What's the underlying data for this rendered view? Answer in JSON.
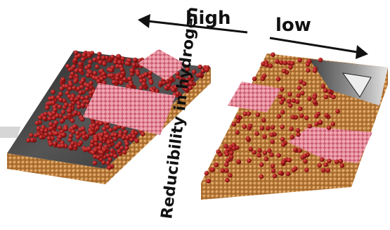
{
  "labels": {
    "high": "high",
    "low": "low",
    "axis_title": "Reducibility in hydrogen"
  },
  "colors": {
    "background": "#ffffff",
    "copper_atom": "#c98a45",
    "copper_edge": "#8a5620",
    "oxygen_atom": "#a01818",
    "oxide_island": "#e07a8a",
    "oxide_island_light": "#f2b3bf",
    "stm_image_dark": "#3a3a3a",
    "stm_image_light": "#d8d8d8",
    "arrow": "#111111",
    "text": "#111111"
  },
  "panels": [
    {
      "name": "high-reducibility-slab",
      "oxygen_coverage": "dense"
    },
    {
      "name": "low-reducibility-slab",
      "oxygen_coverage": "sparse"
    }
  ],
  "icons": {
    "arrow_left": "arrow-left-icon",
    "arrow_right": "arrow-right-icon"
  }
}
